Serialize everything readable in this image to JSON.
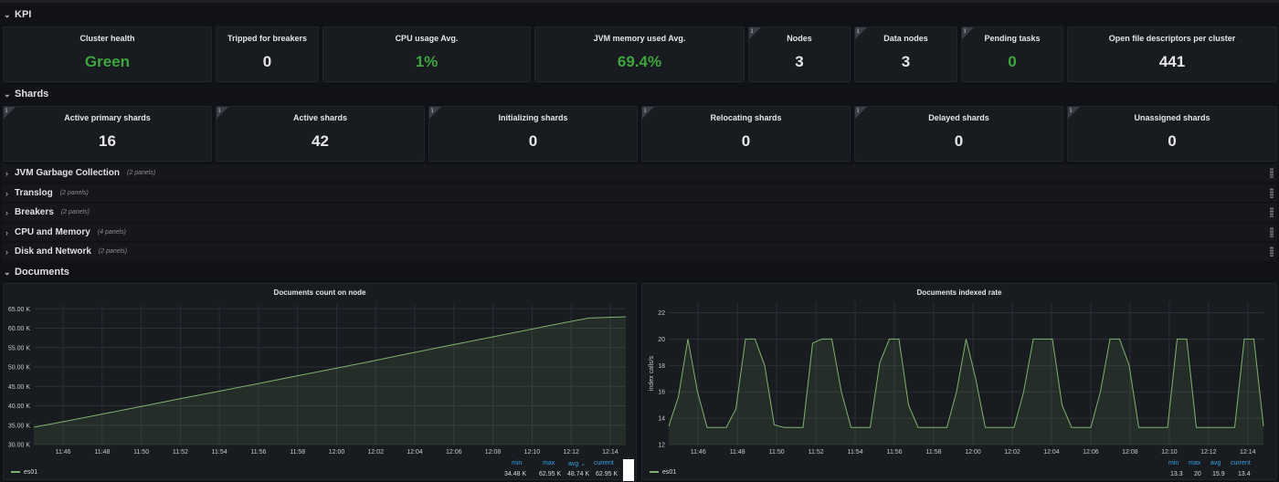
{
  "rows": {
    "kpi": "KPI",
    "shards": "Shards",
    "documents": "Documents"
  },
  "kpi_panels": [
    {
      "title": "Cluster health",
      "value": "Green"
    },
    {
      "title": "Tripped for breakers",
      "value": "0"
    },
    {
      "title": "CPU usage Avg.",
      "value": "1%"
    },
    {
      "title": "JVM memory used Avg.",
      "value": "69.4%"
    },
    {
      "title": "Nodes",
      "value": "3"
    },
    {
      "title": "Data nodes",
      "value": "3"
    },
    {
      "title": "Pending tasks",
      "value": "0"
    },
    {
      "title": "Open file descriptors per cluster",
      "value": "441"
    }
  ],
  "shard_panels": [
    {
      "title": "Active primary shards",
      "value": "16"
    },
    {
      "title": "Active shards",
      "value": "42"
    },
    {
      "title": "Initializing shards",
      "value": "0"
    },
    {
      "title": "Relocating shards",
      "value": "0"
    },
    {
      "title": "Delayed shards",
      "value": "0"
    },
    {
      "title": "Unassigned shards",
      "value": "0"
    }
  ],
  "collapsed_rows": [
    {
      "label": "JVM Garbage Collection",
      "count": "(2 panels)"
    },
    {
      "label": "Translog",
      "count": "(2 panels)"
    },
    {
      "label": "Breakers",
      "count": "(2 panels)"
    },
    {
      "label": "CPU and Memory",
      "count": "(4 panels)"
    },
    {
      "label": "Disk and Network",
      "count": "(2 panels)"
    }
  ],
  "info_icon": "i",
  "colors": {
    "green": "#3ea63e",
    "series": "#7eb26d",
    "legend_header": "#33a2e5"
  },
  "chart_data": [
    {
      "type": "area",
      "title": "Documents count on node",
      "x": [
        "11:44",
        "11:46",
        "11:48",
        "11:50",
        "11:52",
        "11:54",
        "11:56",
        "11:58",
        "12:00",
        "12:02",
        "12:04",
        "12:06",
        "12:08",
        "12:10",
        "12:12",
        "12:14",
        "12:15"
      ],
      "x_ticks": [
        "11:46",
        "11:48",
        "11:50",
        "11:52",
        "11:54",
        "11:56",
        "11:58",
        "12:00",
        "12:02",
        "12:04",
        "12:06",
        "12:08",
        "12:10",
        "12:12",
        "12:14"
      ],
      "y_ticks": [
        "30.00 K",
        "35.00 K",
        "40.00 K",
        "45.00 K",
        "50.00 K",
        "55.00 K",
        "60.00 K",
        "65.00 K"
      ],
      "ylim": [
        30000,
        66000
      ],
      "series": [
        {
          "name": "es01",
          "values": [
            34480,
            36250,
            38150,
            40000,
            41900,
            43750,
            45600,
            47500,
            49350,
            51250,
            53200,
            55100,
            57000,
            58900,
            60800,
            62600,
            62950
          ]
        }
      ],
      "legend": {
        "headers": [
          "min",
          "max",
          "avg",
          "current"
        ],
        "values": [
          "34.48 K",
          "62.95 K",
          "48.74 K",
          "62.95 K"
        ],
        "avg_sort_indicator": "avg ⌄"
      }
    },
    {
      "type": "area",
      "title": "Documents indexed rate",
      "ylabel": "index calls/s",
      "x_ticks": [
        "11:46",
        "11:48",
        "11:50",
        "11:52",
        "11:54",
        "11:56",
        "11:58",
        "12:00",
        "12:02",
        "12:04",
        "12:06",
        "12:08",
        "12:10",
        "12:12",
        "12:14"
      ],
      "y_ticks": [
        "12",
        "14",
        "16",
        "18",
        "20",
        "22"
      ],
      "ylim": [
        12,
        22.8
      ],
      "series": [
        {
          "name": "es01",
          "values": [
            13.4,
            15.6,
            20,
            16,
            13.3,
            13.3,
            13.3,
            14.7,
            20,
            20,
            18,
            13.5,
            13.3,
            13.3,
            13.3,
            19.7,
            20,
            20,
            16,
            13.3,
            13.3,
            13.3,
            18.2,
            20,
            20,
            15,
            13.3,
            13.3,
            13.3,
            13.3,
            16,
            20,
            17,
            13.3,
            13.3,
            13.3,
            13.3,
            16,
            20,
            20,
            20,
            15,
            13.3,
            13.3,
            13.3,
            16,
            20,
            20,
            18,
            13.3,
            13.3,
            13.3,
            13.3,
            20,
            20,
            13.3,
            13.3,
            13.3,
            13.3,
            13.3,
            20,
            20,
            13.4
          ]
        }
      ],
      "legend": {
        "headers": [
          "min",
          "max",
          "avg",
          "current"
        ],
        "values": [
          "13.3",
          "20",
          "15.9",
          "13.4"
        ]
      }
    }
  ]
}
